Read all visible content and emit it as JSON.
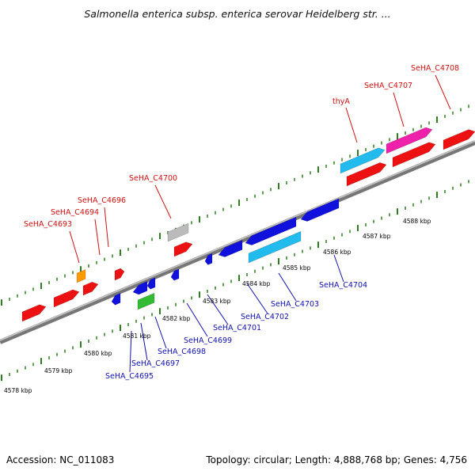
{
  "title": "Salmonella enterica subsp. enterica serovar Heidelberg str. ...",
  "footer": {
    "accession": "Accession: NC_011083",
    "summary": "Topology: circular; Length: 4,888,768 bp; Genes: 4,756"
  },
  "colors": {
    "backbone": "#8a8a8a",
    "tick": "#2e7d1e",
    "forward_label": "#cc1111",
    "reverse_label": "#1111aa",
    "red": "#ee1111",
    "pink": "#ee22aa",
    "cyan": "#22bbee",
    "blue": "#1111dd",
    "gray": "#bbbbbb",
    "orange": "#ff9900",
    "green": "#33bb33"
  },
  "kbp_labels": [
    "4578 kbp",
    "4579 kbp",
    "4580 kbp",
    "4581 kbp",
    "4582 kbp",
    "4583 kbp",
    "4584 kbp",
    "4585 kbp",
    "4586 kbp",
    "4587 kbp",
    "4588 kbp"
  ],
  "forward_labels": [
    "SeHA_C4693",
    "SeHA_C4694",
    "SeHA_C4696",
    "SeHA_C4700",
    "thyA",
    "SeHA_C4707",
    "SeHA_C4708"
  ],
  "reverse_labels": [
    "SeHA_C4695",
    "SeHA_C4697",
    "SeHA_C4698",
    "SeHA_C4699",
    "SeHA_C4701",
    "SeHA_C4702",
    "SeHA_C4703",
    "SeHA_C4704"
  ]
}
